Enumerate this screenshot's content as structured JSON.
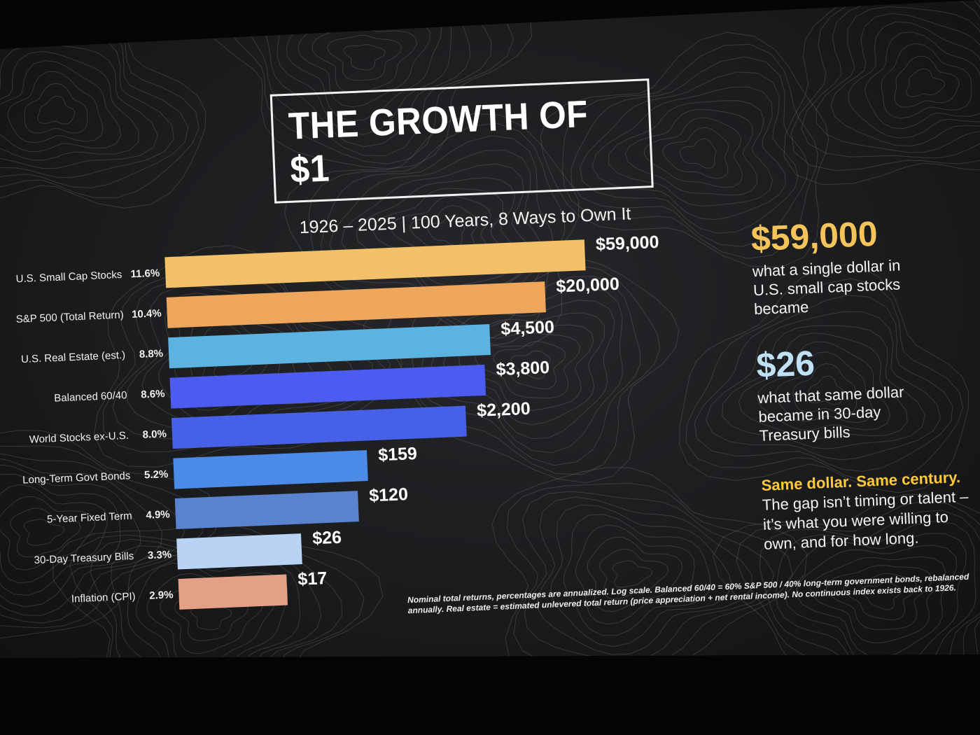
{
  "slide": {
    "title": "THE GROWTH OF $1",
    "subtitle": "1926 – 2025  | 100 Years, 8 Ways to Own It"
  },
  "chart_data": {
    "type": "bar",
    "orientation": "horizontal",
    "scale": "log",
    "categories": [
      "U.S. Small Cap Stocks",
      "S&P 500 (Total Return)",
      "U.S. Real Estate (est.)",
      "Balanced 60/40",
      "World Stocks ex-U.S.",
      "Long-Term Govt Bonds",
      "5-Year Fixed Term",
      "30-Day Treasury Bills",
      "Inflation (CPI)"
    ],
    "annualized_returns": [
      "11.6%",
      "10.4%",
      "8.8%",
      "8.6%",
      "8.0%",
      "5.2%",
      "4.9%",
      "3.3%",
      "2.9%"
    ],
    "values": [
      59000,
      20000,
      4500,
      3800,
      2200,
      159,
      120,
      26,
      17
    ],
    "value_labels": [
      "$59,000",
      "$20,000",
      "$4,500",
      "$3,800",
      "$2,200",
      "$159",
      "$120",
      "$26",
      "$17"
    ],
    "colors": [
      "#f2c068",
      "#eea55c",
      "#5cb3e2",
      "#4d5cf0",
      "#4661e8",
      "#4b8ae6",
      "#5a83cf",
      "#b9d3f5",
      "#e3a087"
    ]
  },
  "callouts": [
    {
      "value": "$59,000",
      "color": "#f4c45a",
      "text": "what a single dollar in U.S. small cap stocks became"
    },
    {
      "value": "$26",
      "color": "#bfe0f5",
      "text": "what that same dollar became in 30-day Treasury bills"
    }
  ],
  "takeaway": {
    "headline": "Same dollar. Same century.",
    "body": "The gap isn’t timing or talent – it’s what you were willing to own, and for how long."
  },
  "footnote": "Nominal total returns, percentages are annualized. Log scale. Balanced 60/40 = 60% S&P 500 / 40% long-term government bonds, rebalanced annually. Real estate = estimated unlevered total return (price appreciation + net rental income). No continuous index exists back to 1926."
}
